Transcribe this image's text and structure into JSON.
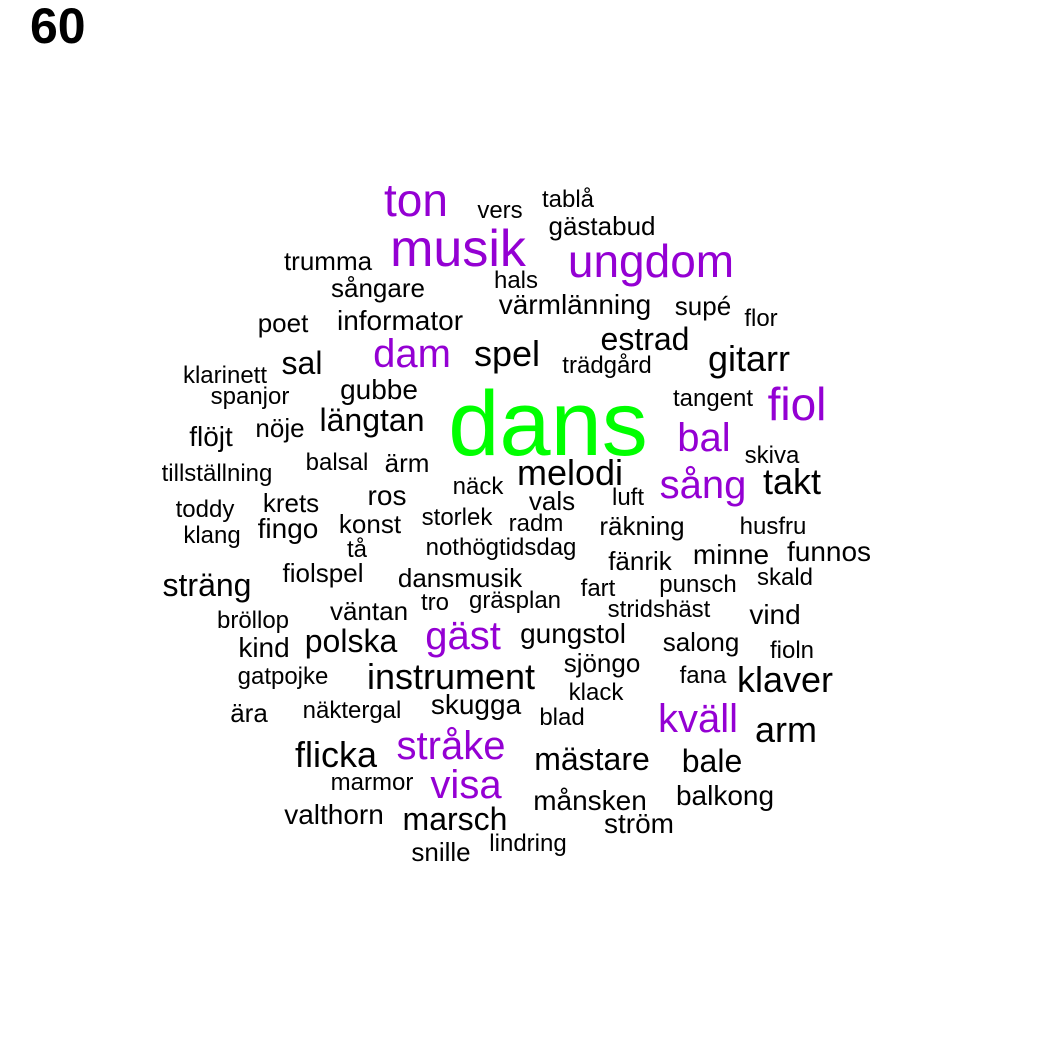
{
  "panel_label": "60",
  "colors": {
    "primary": "#00ff00",
    "secondary": "#9400d3",
    "other": "#000000"
  },
  "words": [
    {
      "text": "dans",
      "group": "primary"
    },
    {
      "text": "musik",
      "group": "secondary"
    },
    {
      "text": "ungdom",
      "group": "secondary"
    },
    {
      "text": "ton",
      "group": "secondary"
    },
    {
      "text": "fiol",
      "group": "secondary"
    },
    {
      "text": "dam",
      "group": "secondary"
    },
    {
      "text": "bal",
      "group": "secondary"
    },
    {
      "text": "sång",
      "group": "secondary"
    },
    {
      "text": "gäst",
      "group": "secondary"
    },
    {
      "text": "kväll",
      "group": "secondary"
    },
    {
      "text": "stråke",
      "group": "secondary"
    },
    {
      "text": "visa",
      "group": "secondary"
    },
    {
      "text": "gitarr",
      "group": "other"
    },
    {
      "text": "spel",
      "group": "other"
    },
    {
      "text": "instrument",
      "group": "other"
    },
    {
      "text": "melodi",
      "group": "other"
    },
    {
      "text": "takt",
      "group": "other"
    },
    {
      "text": "klaver",
      "group": "other"
    },
    {
      "text": "arm",
      "group": "other"
    },
    {
      "text": "flicka",
      "group": "other"
    },
    {
      "text": "sträng",
      "group": "other"
    },
    {
      "text": "polska",
      "group": "other"
    },
    {
      "text": "längtan",
      "group": "other"
    },
    {
      "text": "mästare",
      "group": "other"
    },
    {
      "text": "sal",
      "group": "other"
    },
    {
      "text": "estrad",
      "group": "other"
    },
    {
      "text": "bale",
      "group": "other"
    },
    {
      "text": "marsch",
      "group": "other"
    },
    {
      "text": "värmlänning",
      "group": "other"
    },
    {
      "text": "gungstol",
      "group": "other"
    },
    {
      "text": "flöjt",
      "group": "other"
    },
    {
      "text": "valthorn",
      "group": "other"
    },
    {
      "text": "månsken",
      "group": "other"
    },
    {
      "text": "balkong",
      "group": "other"
    },
    {
      "text": "vind",
      "group": "other"
    },
    {
      "text": "minne",
      "group": "other"
    },
    {
      "text": "funnos",
      "group": "other"
    },
    {
      "text": "skugga",
      "group": "other"
    },
    {
      "text": "kind",
      "group": "other"
    },
    {
      "text": "ros",
      "group": "other"
    },
    {
      "text": "ström",
      "group": "other"
    },
    {
      "text": "informator",
      "group": "other"
    },
    {
      "text": "fingo",
      "group": "other"
    },
    {
      "text": "gubbe",
      "group": "other"
    },
    {
      "text": "sångare",
      "group": "other"
    },
    {
      "text": "trumma",
      "group": "other"
    },
    {
      "text": "gästabud",
      "group": "other"
    },
    {
      "text": "sjöngo",
      "group": "other"
    },
    {
      "text": "fiolspel",
      "group": "other"
    },
    {
      "text": "dansmusik",
      "group": "other"
    },
    {
      "text": "väntan",
      "group": "other"
    },
    {
      "text": "nöje",
      "group": "other"
    },
    {
      "text": "snille",
      "group": "other"
    },
    {
      "text": "krets",
      "group": "other"
    },
    {
      "text": "salong",
      "group": "other"
    },
    {
      "text": "fänrik",
      "group": "other"
    },
    {
      "text": "konst",
      "group": "other"
    },
    {
      "text": "ärm",
      "group": "other"
    },
    {
      "text": "vals",
      "group": "other"
    },
    {
      "text": "räkning",
      "group": "other"
    },
    {
      "text": "supé",
      "group": "other"
    },
    {
      "text": "poet",
      "group": "other"
    },
    {
      "text": "ära",
      "group": "other"
    },
    {
      "text": "tangent",
      "group": "other"
    },
    {
      "text": "gräsplan",
      "group": "other"
    },
    {
      "text": "stridshäst",
      "group": "other"
    },
    {
      "text": "fart",
      "group": "other"
    },
    {
      "text": "gatpojke",
      "group": "other"
    },
    {
      "text": "balsal",
      "group": "other"
    },
    {
      "text": "trädgård",
      "group": "other"
    },
    {
      "text": "marmor",
      "group": "other"
    },
    {
      "text": "näktergal",
      "group": "other"
    },
    {
      "text": "lindring",
      "group": "other"
    },
    {
      "text": "bröllop",
      "group": "other"
    },
    {
      "text": "vers",
      "group": "other"
    },
    {
      "text": "nothögtidsdag",
      "group": "other"
    },
    {
      "text": "storlek",
      "group": "other"
    },
    {
      "text": "spanjor",
      "group": "other"
    },
    {
      "text": "klarinett",
      "group": "other"
    },
    {
      "text": "punsch",
      "group": "other"
    },
    {
      "text": "fana",
      "group": "other"
    },
    {
      "text": "fioln",
      "group": "other"
    },
    {
      "text": "skiva",
      "group": "other"
    },
    {
      "text": "radm",
      "group": "other"
    },
    {
      "text": "näck",
      "group": "other"
    },
    {
      "text": "tablå",
      "group": "other"
    },
    {
      "text": "klack",
      "group": "other"
    },
    {
      "text": "skald",
      "group": "other"
    },
    {
      "text": "husfru",
      "group": "other"
    },
    {
      "text": "tillställning",
      "group": "other"
    },
    {
      "text": "blad",
      "group": "other"
    },
    {
      "text": "toddy",
      "group": "other"
    },
    {
      "text": "klang",
      "group": "other"
    },
    {
      "text": "flor",
      "group": "other"
    },
    {
      "text": "hals",
      "group": "other"
    },
    {
      "text": "luft",
      "group": "other"
    },
    {
      "text": "tå",
      "group": "other"
    },
    {
      "text": "tro",
      "group": "other"
    }
  ]
}
